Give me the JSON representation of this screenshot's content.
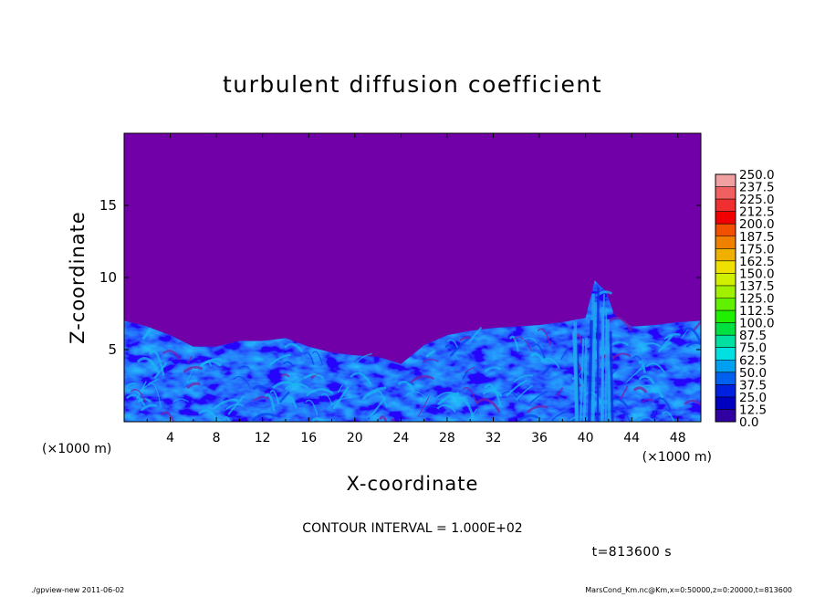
{
  "chart_data": {
    "type": "heatmap",
    "title": "turbulent diffusion coefficient",
    "xlabel": "X-coordinate",
    "ylabel": "Z-coordinate",
    "x_unit": "(×1000 m)",
    "y_unit": "(×1000 m)",
    "xlim": [
      0,
      50
    ],
    "ylim": [
      0,
      20
    ],
    "x_ticks": [
      "4",
      "8",
      "12",
      "16",
      "20",
      "24",
      "28",
      "32",
      "36",
      "40",
      "44",
      "48"
    ],
    "x_tick_values": [
      4,
      8,
      12,
      16,
      20,
      24,
      28,
      32,
      36,
      40,
      44,
      48
    ],
    "y_ticks": [
      "5",
      "10",
      "15"
    ],
    "y_tick_values": [
      5,
      10,
      15
    ],
    "colorbar": {
      "labels": [
        "250.0",
        "237.5",
        "225.0",
        "212.5",
        "200.0",
        "187.5",
        "175.0",
        "162.5",
        "150.0",
        "137.5",
        "125.0",
        "112.5",
        "100.0",
        "87.5",
        "75.0",
        "62.5",
        "50.0",
        "37.5",
        "25.0",
        "12.5",
        "0.0"
      ],
      "colors": [
        "#f0a0a0",
        "#f06060",
        "#f03030",
        "#f00000",
        "#f05000",
        "#f08000",
        "#f0b000",
        "#f0e000",
        "#d0f000",
        "#a0f000",
        "#60f000",
        "#20f000",
        "#00e040",
        "#00e0a0",
        "#00e0e0",
        "#00a0f0",
        "#0060f0",
        "#0020e0",
        "#0000c0",
        "#3000a0",
        "#7000a0"
      ]
    },
    "background_color": "#7100a8",
    "turbulent_layer_top": [
      [
        0,
        7.0
      ],
      [
        2,
        6.6
      ],
      [
        4,
        6.0
      ],
      [
        6,
        5.2
      ],
      [
        8,
        5.2
      ],
      [
        10,
        5.6
      ],
      [
        12,
        5.6
      ],
      [
        14,
        5.8
      ],
      [
        16,
        5.2
      ],
      [
        18,
        4.8
      ],
      [
        20,
        4.6
      ],
      [
        22,
        4.5
      ],
      [
        24,
        4.0
      ],
      [
        26,
        5.3
      ],
      [
        28,
        6.0
      ],
      [
        30,
        6.3
      ],
      [
        32,
        6.5
      ],
      [
        34,
        6.6
      ],
      [
        36,
        6.7
      ],
      [
        38,
        6.9
      ],
      [
        40,
        7.2
      ],
      [
        40.8,
        9.8
      ],
      [
        41.8,
        9.0
      ],
      [
        42.5,
        7.4
      ],
      [
        44,
        6.6
      ],
      [
        46,
        6.7
      ],
      [
        48,
        6.9
      ],
      [
        50,
        7.0
      ]
    ],
    "plume": {
      "x": 40.8,
      "z_top": 9.8
    },
    "contour_interval_text": "CONTOUR INTERVAL = 1.000E+02",
    "time_text": "t=813600 s"
  },
  "footer": {
    "left": "./gpview-new   2011-06-02",
    "right": "MarsCond_Km.nc@Km,x=0:50000,z=0:20000,t=813600"
  }
}
